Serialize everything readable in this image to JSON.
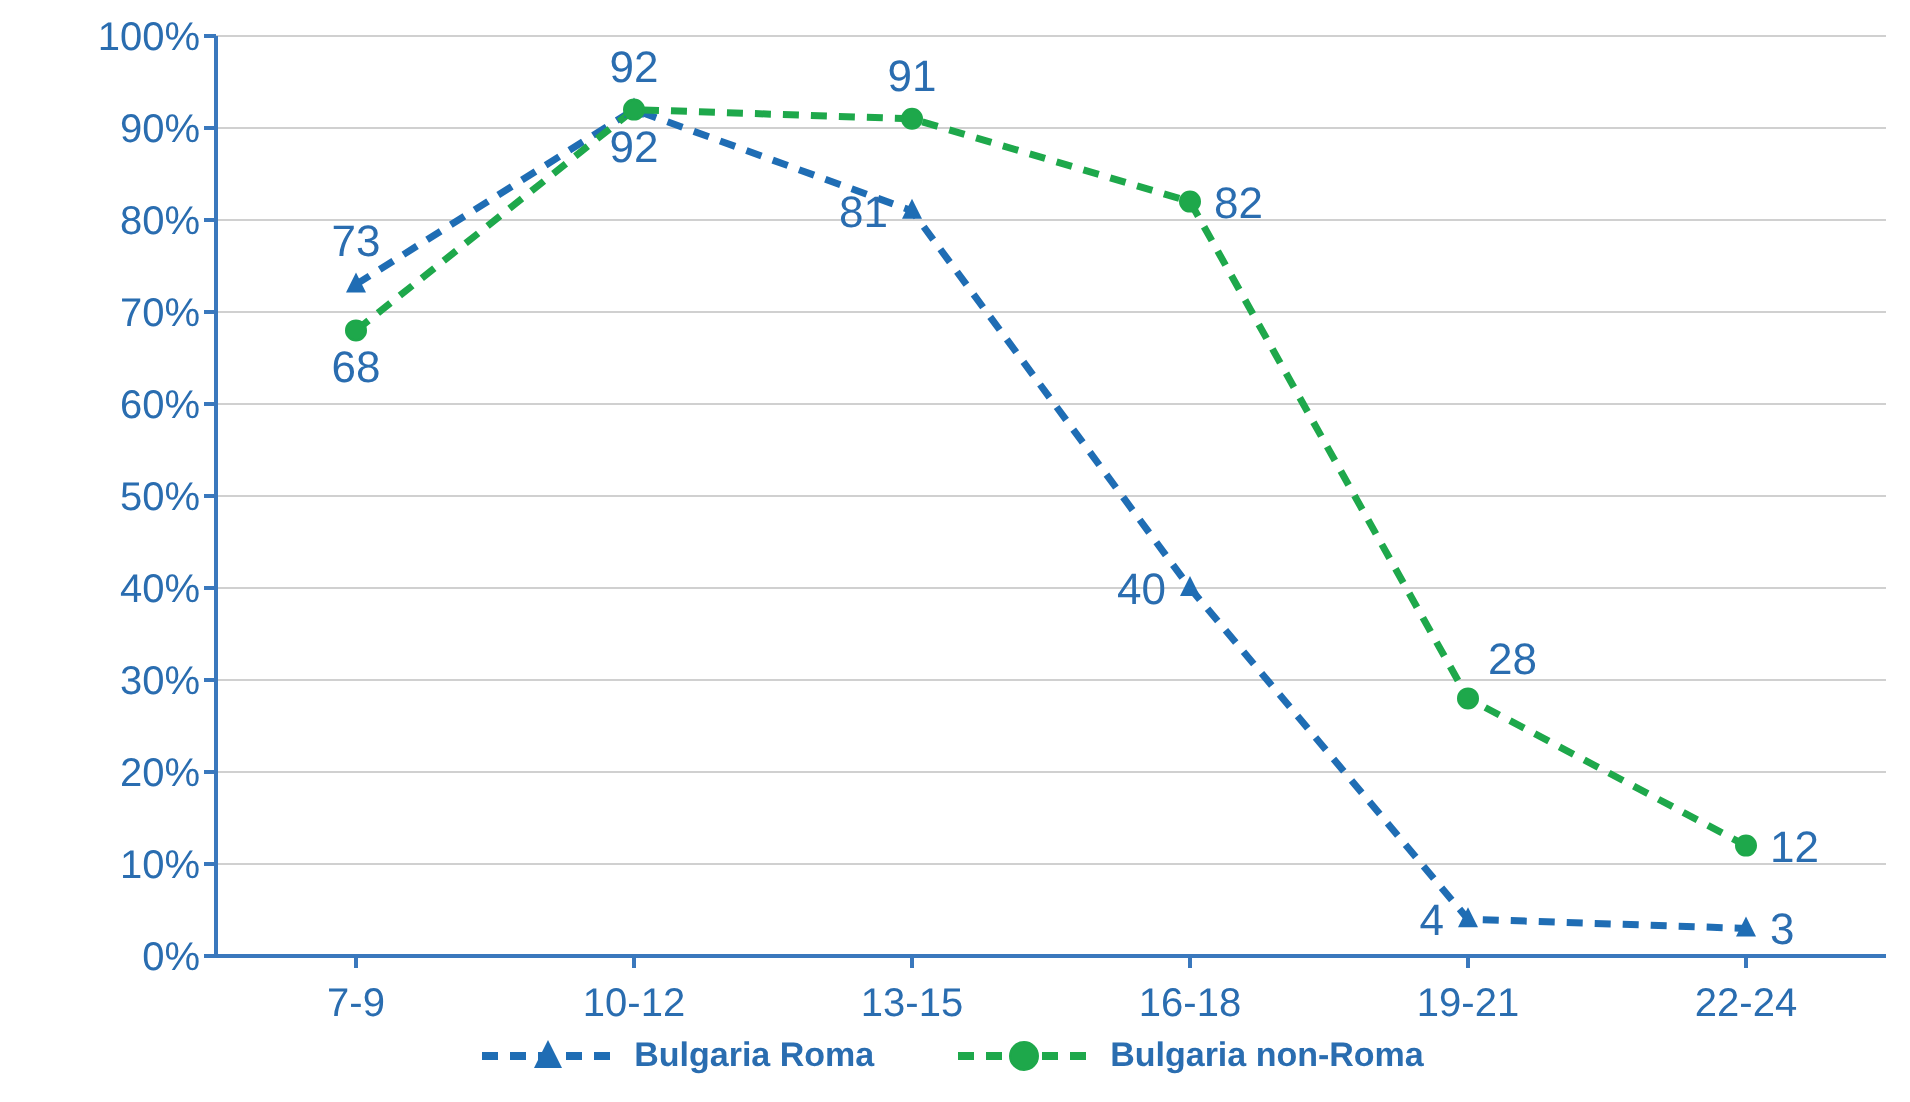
{
  "chart_data": {
    "type": "line",
    "categories": [
      "7-9",
      "10-12",
      "13-15",
      "16-18",
      "19-21",
      "22-24"
    ],
    "series": [
      {
        "name": "Bulgaria Roma",
        "color": "#1f6db4",
        "values": [
          73,
          92,
          81,
          40,
          4,
          3
        ],
        "marker": "triangle"
      },
      {
        "name": "Bulgaria non-Roma",
        "color": "#1ea84b",
        "values": [
          68,
          92,
          91,
          82,
          28,
          12
        ],
        "marker": "circle"
      }
    ],
    "ylim": [
      0,
      100
    ],
    "yticks": [
      {
        "value": 0,
        "label": "0%"
      },
      {
        "value": 10,
        "label": "10%"
      },
      {
        "value": 20,
        "label": "20%"
      },
      {
        "value": 30,
        "label": "30%"
      },
      {
        "value": 40,
        "label": "40%"
      },
      {
        "value": 50,
        "label": "50%"
      },
      {
        "value": 60,
        "label": "60%"
      },
      {
        "value": 70,
        "label": "70%"
      },
      {
        "value": 80,
        "label": "80%"
      },
      {
        "value": 90,
        "label": "90%"
      },
      {
        "value": 100,
        "label": "100%"
      }
    ],
    "grid": "y",
    "legend": "bottom",
    "line_style": "dashed",
    "data_labels": true
  }
}
